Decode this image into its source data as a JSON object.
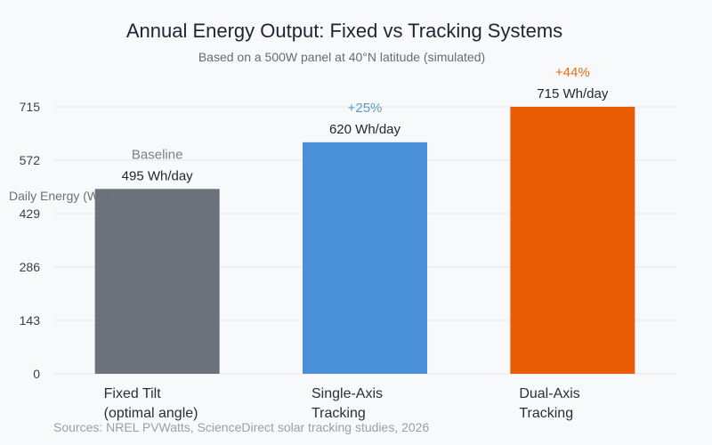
{
  "chart_data": {
    "type": "bar",
    "title": "Annual Energy Output: Fixed vs Tracking Systems",
    "subtitle": "Based on a 500W panel at 40°N latitude (simulated)",
    "ylabel": "Daily Energy (Wh)",
    "xlabel": "",
    "ylim": [
      0,
      715
    ],
    "yticks": [
      0,
      143,
      286,
      429,
      572,
      715
    ],
    "grid": true,
    "categories": [
      [
        "Fixed Tilt",
        "(optimal angle)"
      ],
      [
        "Single-Axis",
        "Tracking"
      ],
      [
        "Dual-Axis",
        "Tracking"
      ]
    ],
    "values": [
      495,
      620,
      715
    ],
    "value_labels": [
      "495 Wh/day",
      "620 Wh/day",
      "715 Wh/day"
    ],
    "annotations": [
      "Baseline",
      "+25%",
      "+44%"
    ],
    "colors": [
      "#6b727b",
      "#4a90d9",
      "#e85d04"
    ],
    "annotation_colors": [
      "#7a7f87",
      "#5a9bc6",
      "#e0701a"
    ],
    "source": "Sources: NREL PVWatts, ScienceDirect solar tracking studies, 2026"
  }
}
